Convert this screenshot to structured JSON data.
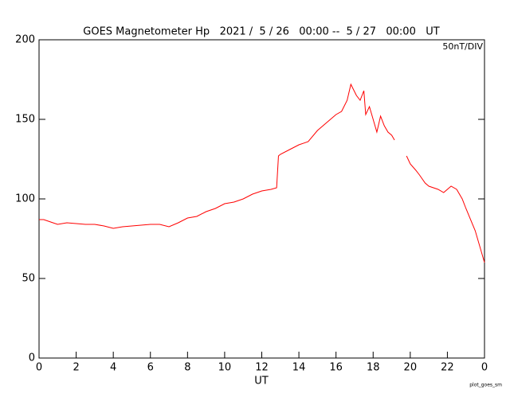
{
  "chart_data": {
    "type": "line",
    "title": "GOES Magnetometer Hp   2021 /  5 / 26   00:00 --  5 / 27   00:00   UT",
    "annotation": "50nT/DIV",
    "x_label": "UT",
    "footnote": "plot_goes_sm",
    "xlim": [
      0,
      24
    ],
    "xticks": [
      0,
      2,
      4,
      6,
      8,
      10,
      12,
      14,
      16,
      18,
      20,
      22,
      {
        "value": 24,
        "label": "0"
      }
    ],
    "ylim": [
      0,
      200
    ],
    "yticks": [
      0,
      50,
      100,
      150,
      200
    ],
    "series": [
      {
        "color": "#ff0000",
        "x": [
          0,
          0.25,
          0.5,
          0.75,
          1,
          1.5,
          2,
          2.5,
          3,
          3.5,
          4,
          4.5,
          5,
          5.5,
          6,
          6.5,
          7,
          7.5,
          8,
          8.5,
          9,
          9.5,
          10,
          10.5,
          11,
          11.5,
          12,
          12.5,
          12.8,
          12.9,
          13,
          13.5,
          14,
          14.5,
          15,
          15.5,
          16,
          16.3,
          16.6,
          16.8,
          17.1,
          17.3,
          17.5,
          17.6,
          17.8,
          18,
          18.2,
          18.4,
          18.6,
          18.8,
          19,
          19.15,
          19.5,
          19.8,
          20,
          20.3,
          20.5,
          20.8,
          21,
          21.5,
          21.8,
          22.2,
          22.5,
          22.8,
          23,
          23.5,
          23.8,
          24
        ],
        "values": [
          87,
          87,
          86,
          85,
          84,
          85,
          84.5,
          84,
          84,
          83,
          81.5,
          82.5,
          83,
          83.5,
          84,
          84,
          82.5,
          85,
          88,
          89,
          92,
          94,
          97,
          98,
          100,
          103,
          105,
          106,
          107,
          127,
          128,
          131,
          134,
          136,
          143,
          148,
          153,
          155,
          162,
          172,
          165,
          162,
          168,
          153,
          158,
          150,
          142,
          152,
          146,
          142,
          140,
          137,
          null,
          127,
          122,
          118,
          115,
          110,
          108,
          106,
          104,
          108,
          106,
          100,
          94,
          80,
          68,
          60
        ]
      }
    ]
  }
}
